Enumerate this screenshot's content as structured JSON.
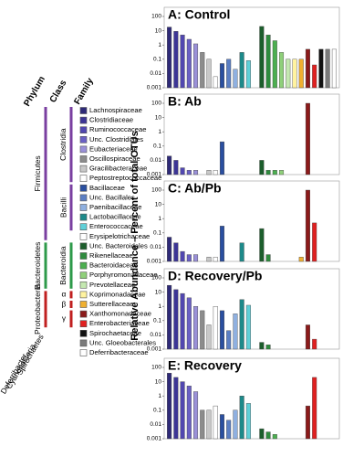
{
  "y_label": "Relative Abundance – Percent of total OTUs",
  "taxonomy": {
    "headers": [
      "Phylum",
      "Class",
      "Family"
    ],
    "phyla": [
      "Firmicutes",
      "Bacteroidetes",
      "Proteobacteria",
      "Spirochaetes",
      "Cyanobacteria",
      "Deferribacter"
    ],
    "classes": [
      "Clostridia",
      "Bacilli",
      "Bacteroidia",
      "α",
      "β",
      "γ"
    ],
    "families": [
      {
        "name": "Lachnospiraceae",
        "color": "#2e2a78"
      },
      {
        "name": "Clostridiaceae",
        "color": "#3c3596"
      },
      {
        "name": "Ruminococcaceae",
        "color": "#5147b0"
      },
      {
        "name": "Unc. Clostridiales",
        "color": "#6a60c4"
      },
      {
        "name": "Eubacteriaceae",
        "color": "#9a90d8"
      },
      {
        "name": "Oscillospiraceae",
        "color": "#8c8c8c"
      },
      {
        "name": "Gracilibacteraceae",
        "color": "#c8c8c8"
      },
      {
        "name": "Peptostreptococcaceae",
        "color": "#ffffff"
      },
      {
        "name": "Bacillaceae",
        "color": "#2a4fa0"
      },
      {
        "name": "Unc. Bacillales",
        "color": "#5b7fc4"
      },
      {
        "name": "Paenibacillaceae",
        "color": "#8fb0e0"
      },
      {
        "name": "Lactobacillaceae",
        "color": "#1d8a8a"
      },
      {
        "name": "Enterococcaceae",
        "color": "#5fd0d8"
      },
      {
        "name": "Erysipelotrichaceae",
        "color": "#ffffff"
      },
      {
        "name": "Unc. Bacteroidales",
        "color": "#1c5e2c"
      },
      {
        "name": "Rikenellaceae",
        "color": "#2e8b3e"
      },
      {
        "name": "Bacteroidaceae",
        "color": "#4caf50"
      },
      {
        "name": "Porphyromonadaceae",
        "color": "#8fd07a"
      },
      {
        "name": "Prevotellaceae",
        "color": "#c4e8b0"
      },
      {
        "name": "Koprimonadaceae",
        "color": "#fff3a0"
      },
      {
        "name": "Sutterellaceae",
        "color": "#f0b030"
      },
      {
        "name": "Xanthomonadaceae",
        "color": "#8b1a1a"
      },
      {
        "name": "Enterobacteriaceae",
        "color": "#e02020"
      },
      {
        "name": "Spirochaetaceae",
        "color": "#111111"
      },
      {
        "name": "Unc. Gloeobacterales",
        "color": "#7a7a7a"
      },
      {
        "name": "Deferribacteraceae",
        "color": "#ffffff"
      }
    ]
  },
  "chart_data": [
    {
      "type": "bar",
      "title": "A: Control",
      "log_scale": true,
      "ylim": [
        0.001,
        100
      ],
      "yticks": [
        0.001,
        0.01,
        0.1,
        1,
        10,
        100
      ],
      "values": [
        18,
        9,
        5,
        2.5,
        1.2,
        0.3,
        0.1,
        0.006,
        0.05,
        0.1,
        0.02,
        0.3,
        0.08,
        null,
        20,
        5,
        2,
        0.3,
        0.1,
        0.1,
        0.1,
        0.5,
        0.04,
        0.5,
        0.5,
        0.5
      ]
    },
    {
      "type": "bar",
      "title": "B: Ab",
      "log_scale": true,
      "ylim": [
        0.001,
        100
      ],
      "yticks": [
        0.001,
        0.01,
        0.1,
        1,
        10,
        100
      ],
      "values": [
        0.02,
        0.01,
        0.003,
        0.002,
        0.002,
        null,
        0.002,
        0.002,
        0.2,
        null,
        null,
        null,
        null,
        null,
        0.01,
        0.002,
        0.002,
        0.002,
        null,
        null,
        null,
        100,
        null,
        null,
        null,
        null
      ]
    },
    {
      "type": "bar",
      "title": "C: Ab/Pb",
      "log_scale": true,
      "ylim": [
        0.001,
        100
      ],
      "yticks": [
        0.001,
        0.01,
        0.1,
        1,
        10,
        100
      ],
      "values": [
        0.05,
        0.02,
        0.005,
        0.003,
        0.003,
        null,
        0.002,
        0.002,
        0.3,
        null,
        null,
        0.02,
        null,
        null,
        0.2,
        0.003,
        null,
        null,
        null,
        null,
        0.002,
        100,
        0.5,
        null,
        null,
        null
      ]
    },
    {
      "type": "bar",
      "title": "D: Recovery/Pb",
      "log_scale": true,
      "ylim": [
        0.001,
        100
      ],
      "yticks": [
        0.001,
        0.01,
        0.1,
        1,
        10,
        100
      ],
      "values": [
        30,
        15,
        8,
        4,
        1,
        0.5,
        0.05,
        1,
        0.5,
        0.02,
        0.3,
        3,
        1.2,
        null,
        0.003,
        0.002,
        null,
        null,
        null,
        null,
        null,
        0.05,
        0.005,
        null,
        null,
        null
      ]
    },
    {
      "type": "bar",
      "title": "E: Recovery",
      "log_scale": true,
      "ylim": [
        0.001,
        100
      ],
      "yticks": [
        0.001,
        0.01,
        0.1,
        1,
        10,
        100
      ],
      "values": [
        40,
        20,
        10,
        5,
        2,
        0.1,
        0.1,
        0.2,
        0.05,
        0.02,
        0.1,
        1,
        0.3,
        null,
        0.005,
        0.003,
        0.002,
        null,
        null,
        null,
        null,
        0.2,
        20,
        null,
        null,
        null
      ]
    }
  ]
}
